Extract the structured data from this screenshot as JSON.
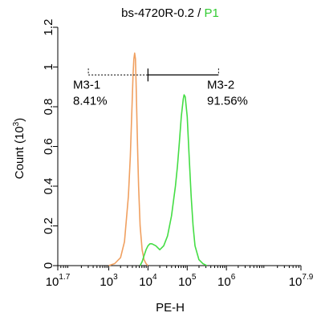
{
  "chart_data": {
    "type": "line",
    "title_main": "bs-4720R-0.2 / ",
    "title_gate": "P1",
    "title_gate_color": "#33cc33",
    "xlabel": "PE-H",
    "ylabel_main": "Count  (10",
    "ylabel_exp": "3",
    "ylabel_close": ")",
    "x_scale": "log",
    "xlim": [
      1.7,
      7.9
    ],
    "ylim": [
      0,
      1.2
    ],
    "x_ticks": [
      {
        "base": "10",
        "exp": "1.7",
        "log": 1.7
      },
      {
        "base": "10",
        "exp": "3",
        "log": 3
      },
      {
        "base": "10",
        "exp": "4",
        "log": 4
      },
      {
        "base": "10",
        "exp": "5",
        "log": 5
      },
      {
        "base": "10",
        "exp": "6",
        "log": 6
      },
      {
        "base": "10",
        "exp": "7.9",
        "log": 7.9
      }
    ],
    "y_ticks": [
      "0",
      "0.2",
      "0.4",
      "0.6",
      "0.8",
      "1",
      "1.2"
    ],
    "y_tick_values": [
      0,
      0.2,
      0.4,
      0.6,
      0.8,
      1.0,
      1.2
    ],
    "series": [
      {
        "color": "#f0a060",
        "x_log": [
          3.0,
          3.15,
          3.3,
          3.4,
          3.5,
          3.55,
          3.6,
          3.62,
          3.64,
          3.66,
          3.68,
          3.7,
          3.72,
          3.74,
          3.76,
          3.8,
          3.85,
          3.9,
          3.95,
          4.0
        ],
        "y": [
          0.0,
          0.01,
          0.04,
          0.12,
          0.35,
          0.55,
          0.85,
          0.96,
          1.04,
          1.07,
          1.04,
          0.9,
          0.72,
          0.55,
          0.4,
          0.2,
          0.08,
          0.03,
          0.01,
          0.0
        ]
      },
      {
        "color": "#44dd44",
        "x_log": [
          3.8,
          3.85,
          3.9,
          3.95,
          4.0,
          4.05,
          4.1,
          4.2,
          4.3,
          4.4,
          4.5,
          4.6,
          4.7,
          4.75,
          4.8,
          4.85,
          4.9,
          4.92,
          4.95,
          5.0,
          5.05,
          5.1,
          5.15,
          5.2,
          5.3,
          5.4,
          5.5
        ],
        "y": [
          0.0,
          0.02,
          0.05,
          0.08,
          0.1,
          0.11,
          0.11,
          0.1,
          0.08,
          0.1,
          0.15,
          0.25,
          0.4,
          0.5,
          0.62,
          0.75,
          0.84,
          0.86,
          0.85,
          0.75,
          0.55,
          0.35,
          0.2,
          0.1,
          0.03,
          0.01,
          0.0
        ]
      }
    ],
    "gate": {
      "left_log": 2.48,
      "divider_log": 4.0,
      "right_log": 5.8,
      "y": 0.96,
      "left_label": "M3-1",
      "left_pct": "8.41%",
      "right_label": "M3-2",
      "right_pct": "91.56%"
    }
  }
}
